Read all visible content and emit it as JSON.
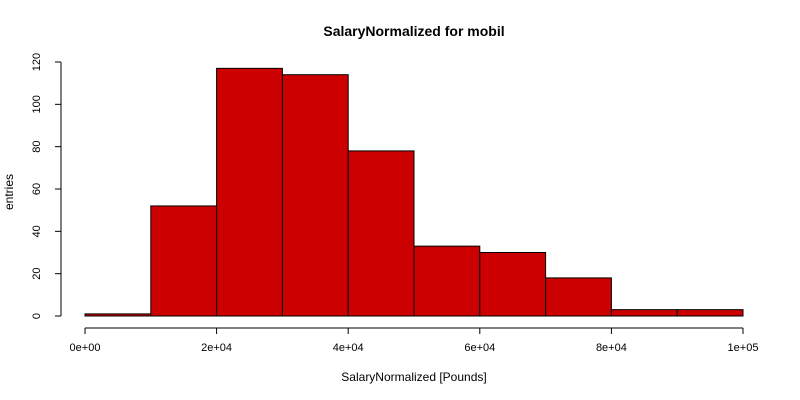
{
  "chart_data": {
    "type": "bar",
    "title": "SalaryNormalized for mobil",
    "xlabel": "SalaryNormalized [Pounds]",
    "ylabel": "entries",
    "bins": [
      {
        "from": 0,
        "to": 10000,
        "count": 1
      },
      {
        "from": 10000,
        "to": 20000,
        "count": 52
      },
      {
        "from": 20000,
        "to": 30000,
        "count": 117
      },
      {
        "from": 30000,
        "to": 40000,
        "count": 114
      },
      {
        "from": 40000,
        "to": 50000,
        "count": 78
      },
      {
        "from": 50000,
        "to": 60000,
        "count": 33
      },
      {
        "from": 60000,
        "to": 70000,
        "count": 30
      },
      {
        "from": 70000,
        "to": 80000,
        "count": 18
      },
      {
        "from": 80000,
        "to": 90000,
        "count": 3
      },
      {
        "from": 90000,
        "to": 100000,
        "count": 3
      }
    ],
    "xlim": [
      0,
      100000
    ],
    "ylim": [
      0,
      120
    ],
    "x_ticks": [
      {
        "value": 0,
        "label": "0e+00"
      },
      {
        "value": 20000,
        "label": "2e+04"
      },
      {
        "value": 40000,
        "label": "4e+04"
      },
      {
        "value": 60000,
        "label": "6e+04"
      },
      {
        "value": 80000,
        "label": "8e+04"
      },
      {
        "value": 100000,
        "label": "1e+05"
      }
    ],
    "y_ticks": [
      {
        "value": 0,
        "label": "0"
      },
      {
        "value": 20,
        "label": "20"
      },
      {
        "value": 40,
        "label": "40"
      },
      {
        "value": 60,
        "label": "60"
      },
      {
        "value": 80,
        "label": "80"
      },
      {
        "value": 100,
        "label": "100"
      },
      {
        "value": 120,
        "label": "120"
      }
    ],
    "bar_color": "#CC0000",
    "grid": false
  }
}
